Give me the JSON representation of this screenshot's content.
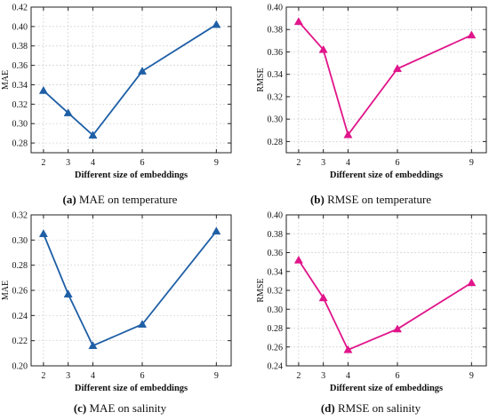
{
  "chart_data": [
    {
      "type": "line",
      "caption_letter": "(a)",
      "caption_text": "MAE on temperature",
      "xlabel": "Different size of embeddings",
      "ylabel": "MAE",
      "x": [
        2,
        3,
        4,
        6,
        9
      ],
      "xticks": [
        "2",
        "3",
        "4",
        "6",
        "9"
      ],
      "xlim": [
        1.5,
        9.6
      ],
      "ylim": [
        0.27,
        0.42
      ],
      "yticks": [
        "0.28",
        "0.30",
        "0.32",
        "0.34",
        "0.36",
        "0.38",
        "0.40",
        "0.42"
      ],
      "series": [
        {
          "values": [
            0.334,
            0.311,
            0.288,
            0.354,
            0.402
          ],
          "color": "#1f5fa6",
          "marker": "triangle"
        }
      ],
      "grid": true
    },
    {
      "type": "line",
      "caption_letter": "(b)",
      "caption_text": "RMSE on temperature",
      "xlabel": "Different size of embeddings",
      "ylabel": "RMSE",
      "x": [
        2,
        3,
        4,
        6,
        9
      ],
      "xticks": [
        "2",
        "3",
        "4",
        "6",
        "9"
      ],
      "xlim": [
        1.5,
        9.6
      ],
      "ylim": [
        0.27,
        0.4
      ],
      "yticks": [
        "0.28",
        "0.30",
        "0.32",
        "0.34",
        "0.36",
        "0.38",
        "0.40"
      ],
      "series": [
        {
          "values": [
            0.387,
            0.362,
            0.286,
            0.345,
            0.375
          ],
          "color": "#e0158a",
          "marker": "triangle"
        }
      ],
      "grid": true
    },
    {
      "type": "line",
      "caption_letter": "(c)",
      "caption_text": "MAE on salinity",
      "xlabel": "Different size of embeddings",
      "ylabel": "MAE",
      "x": [
        2,
        3,
        4,
        6,
        9
      ],
      "xticks": [
        "2",
        "3",
        "4",
        "6",
        "9"
      ],
      "xlim": [
        1.5,
        9.6
      ],
      "ylim": [
        0.2,
        0.32
      ],
      "yticks": [
        "0.20",
        "0.22",
        "0.24",
        "0.26",
        "0.28",
        "0.30",
        "0.32"
      ],
      "series": [
        {
          "values": [
            0.305,
            0.257,
            0.216,
            0.233,
            0.307
          ],
          "color": "#1f5fa6",
          "marker": "triangle"
        }
      ],
      "grid": true
    },
    {
      "type": "line",
      "caption_letter": "(d)",
      "caption_text": "RMSE on salinity",
      "xlabel": "Different size of embeddings",
      "ylabel": "RMSE",
      "x": [
        2,
        3,
        4,
        6,
        9
      ],
      "xticks": [
        "2",
        "3",
        "4",
        "6",
        "9"
      ],
      "xlim": [
        1.5,
        9.6
      ],
      "ylim": [
        0.24,
        0.4
      ],
      "yticks": [
        "0.24",
        "0.26",
        "0.28",
        "0.30",
        "0.32",
        "0.34",
        "0.36",
        "0.38",
        "0.40"
      ],
      "series": [
        {
          "values": [
            0.352,
            0.312,
            0.257,
            0.279,
            0.328
          ],
          "color": "#e0158a",
          "marker": "triangle"
        }
      ],
      "grid": true
    }
  ]
}
